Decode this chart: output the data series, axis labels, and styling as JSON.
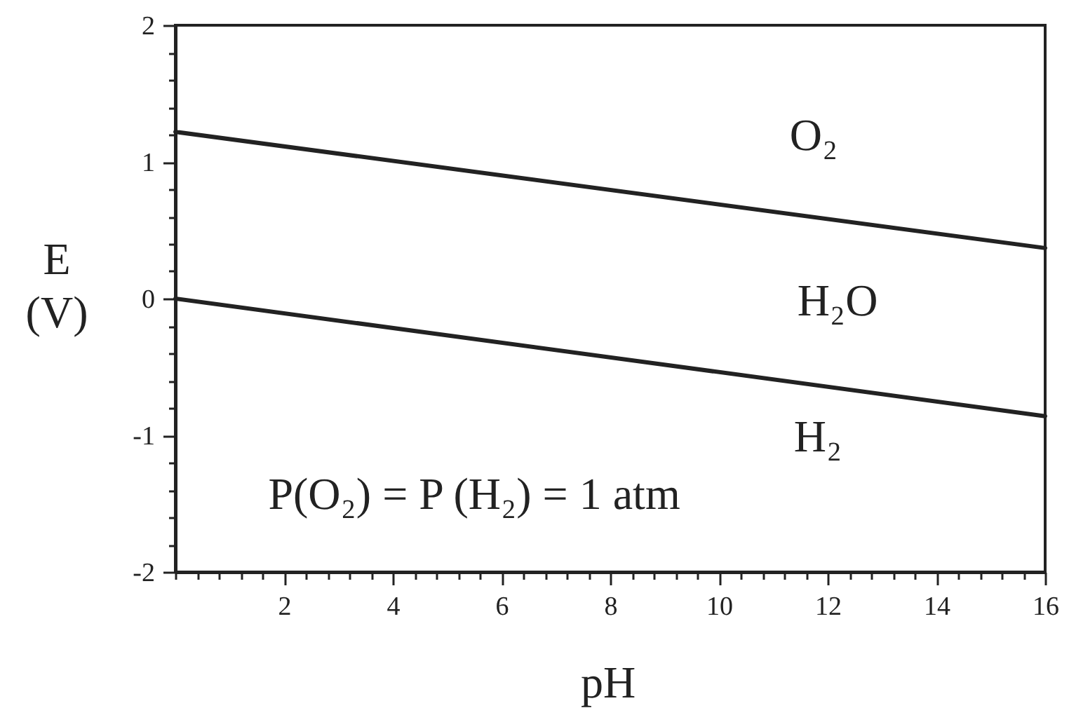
{
  "chart_data": {
    "type": "line",
    "xlabel": "pH",
    "ylabel": "E (V)",
    "x": [
      0,
      16
    ],
    "series": [
      {
        "color": "#222222",
        "values": [
          1.22,
          0.37
        ]
      },
      {
        "color": "#222222",
        "values": [
          0,
          -0.86
        ]
      }
    ],
    "xlim": [
      0,
      16
    ],
    "ylim": [
      -2,
      2
    ],
    "xticks": [
      {
        "value": 0,
        "label": null
      },
      {
        "value": 0.4,
        "label": null
      },
      {
        "value": 0.8,
        "label": null
      },
      {
        "value": 1.2,
        "label": null
      },
      {
        "value": 1.6,
        "label": null
      },
      2,
      {
        "value": 2.4,
        "label": null
      },
      {
        "value": 2.8,
        "label": null
      },
      {
        "value": 3.2,
        "label": null
      },
      {
        "value": 3.6,
        "label": null
      },
      4,
      {
        "value": 4.4,
        "label": null
      },
      {
        "value": 4.8,
        "label": null
      },
      {
        "value": 5.2,
        "label": null
      },
      {
        "value": 5.6,
        "label": null
      },
      6,
      {
        "value": 6.4,
        "label": null
      },
      {
        "value": 6.8,
        "label": null
      },
      {
        "value": 7.2,
        "label": null
      },
      {
        "value": 7.6,
        "label": null
      },
      8,
      {
        "value": 8.4,
        "label": null
      },
      {
        "value": 8.8,
        "label": null
      },
      {
        "value": 9.2,
        "label": null
      },
      {
        "value": 9.6,
        "label": null
      },
      10,
      {
        "value": 10.4,
        "label": null
      },
      {
        "value": 10.8,
        "label": null
      },
      {
        "value": 11.2,
        "label": null
      },
      {
        "value": 11.6,
        "label": null
      },
      12,
      {
        "value": 12.4,
        "label": null
      },
      {
        "value": 12.8,
        "label": null
      },
      {
        "value": 13.2,
        "label": null
      },
      {
        "value": 13.6,
        "label": null
      },
      14,
      {
        "value": 14.4,
        "label": null
      },
      {
        "value": 14.8,
        "label": null
      },
      {
        "value": 15.2,
        "label": null
      },
      {
        "value": 15.6,
        "label": null
      },
      16
    ],
    "yticks": [
      -2,
      {
        "value": -1.8,
        "label": null
      },
      {
        "value": -1.6,
        "label": null
      },
      {
        "value": -1.4,
        "label": null
      },
      {
        "value": -1.2,
        "label": null
      },
      -1,
      {
        "value": -0.8,
        "label": null
      },
      {
        "value": -0.6,
        "label": null
      },
      {
        "value": -0.4,
        "label": null
      },
      {
        "value": -0.2,
        "label": null
      },
      0,
      {
        "value": 0.2,
        "label": null
      },
      {
        "value": 0.4,
        "label": null
      },
      {
        "value": 0.6,
        "label": null
      },
      {
        "value": 0.8,
        "label": null
      },
      1,
      {
        "value": 1.2,
        "label": null
      },
      {
        "value": 1.4,
        "label": null
      },
      {
        "value": 1.6,
        "label": null
      },
      {
        "value": 1.8,
        "label": null
      },
      2
    ],
    "annotations": [
      "O₂",
      "H₂O",
      "H₂",
      "P(O₂) = P (H₂) = 1 atm"
    ],
    "line_style": "solid"
  }
}
